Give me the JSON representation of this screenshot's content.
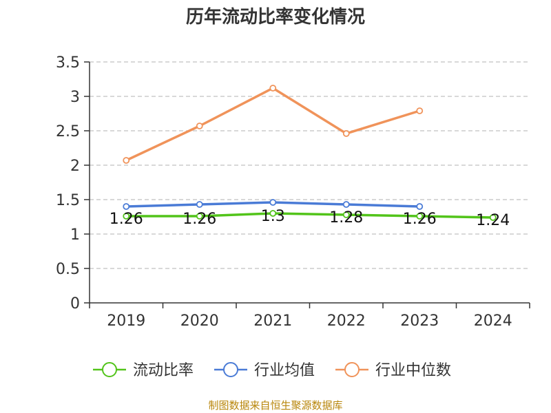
{
  "chart_data": {
    "type": "line",
    "title": "历年流动比率变化情况",
    "categories": [
      "2019",
      "2020",
      "2021",
      "2022",
      "2023",
      "2024"
    ],
    "ylim": [
      0,
      3.5
    ],
    "yticks": [
      "0",
      "0.5",
      "1",
      "1.5",
      "2",
      "2.5",
      "3",
      "3.5"
    ],
    "grid": true,
    "legend_position": "bottom",
    "series": [
      {
        "name": "流动比率",
        "color": "#52c41a",
        "values": [
          1.26,
          1.26,
          1.3,
          1.28,
          1.26,
          1.24
        ],
        "labels": [
          "1.26",
          "1.26",
          "1.3",
          "1.28",
          "1.26",
          "1.24"
        ]
      },
      {
        "name": "行业均值",
        "color": "#4a7bd6",
        "values": [
          1.4,
          1.43,
          1.46,
          1.43,
          1.4,
          null
        ]
      },
      {
        "name": "行业中位数",
        "color": "#f0935a",
        "values": [
          2.07,
          2.57,
          3.12,
          2.46,
          2.79,
          null
        ]
      }
    ],
    "source": "制图数据来自恒生聚源数据库"
  }
}
